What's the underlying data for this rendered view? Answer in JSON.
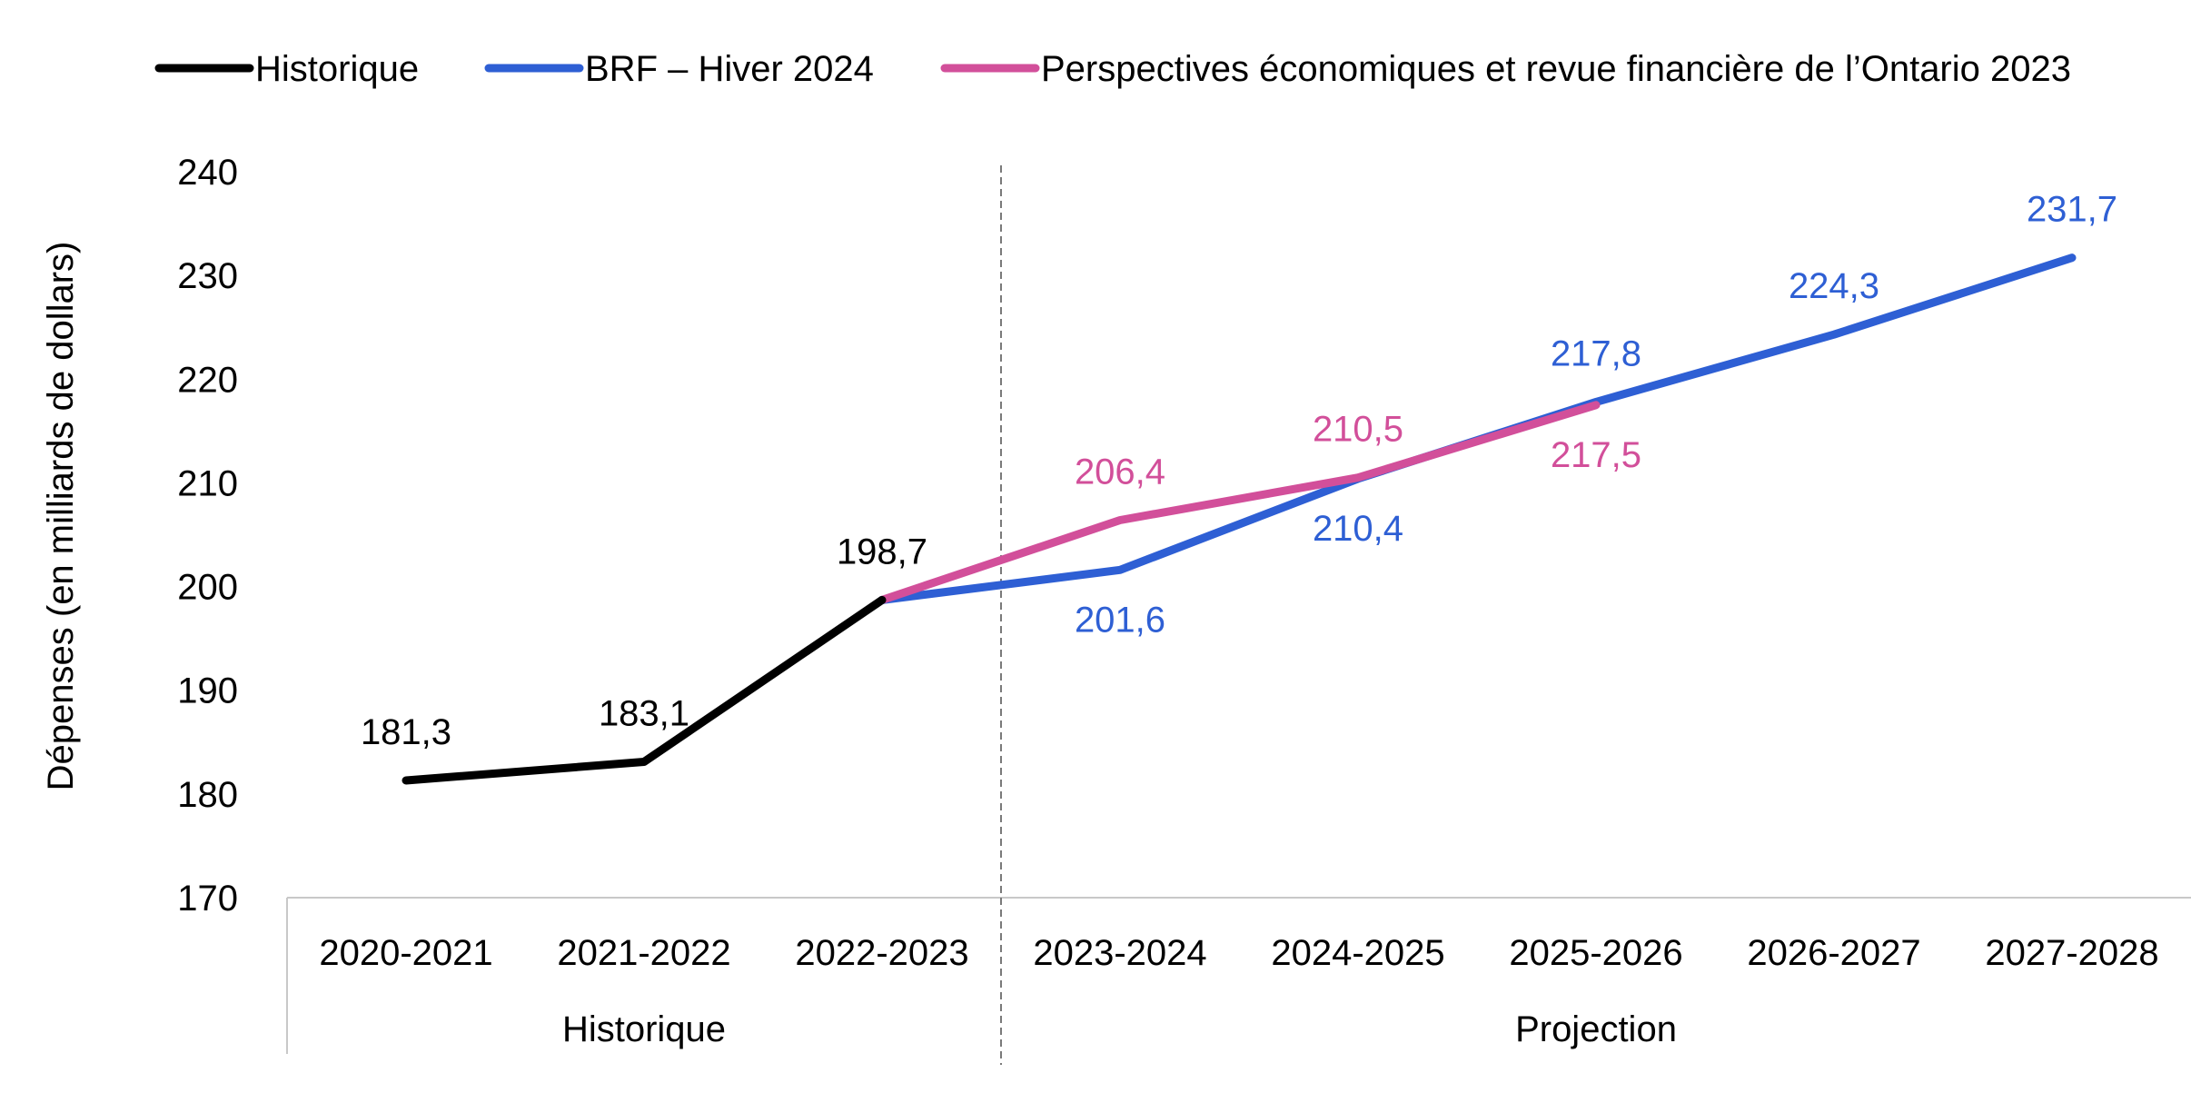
{
  "chart_data": {
    "type": "line",
    "ylabel": "Dépenses (en milliards de dollars)",
    "ylim": [
      170,
      240
    ],
    "yticks": [
      "170",
      "180",
      "190",
      "200",
      "210",
      "220",
      "230",
      "240"
    ],
    "categories": [
      "2020-2021",
      "2021-2022",
      "2022-2023",
      "2023-2024",
      "2024-2025",
      "2025-2026",
      "2026-2027",
      "2027-2028"
    ],
    "groups": [
      {
        "label": "Historique",
        "span": [
          0,
          2
        ]
      },
      {
        "label": "Projection",
        "span": [
          3,
          7
        ]
      }
    ],
    "legend_position": "top",
    "series": [
      {
        "name": "Historique",
        "color": "#000000",
        "values": [
          181.3,
          183.1,
          198.7,
          null,
          null,
          null,
          null,
          null
        ],
        "labels": [
          "181,3",
          "183,1",
          "198,7",
          null,
          null,
          null,
          null,
          null
        ],
        "label_pos": [
          "above",
          "above",
          "above",
          null,
          null,
          null,
          null,
          null
        ]
      },
      {
        "name": "BRF – Hiver 2024",
        "color": "#2E5FD4",
        "values": [
          null,
          null,
          198.7,
          201.6,
          210.4,
          217.8,
          224.3,
          231.7
        ],
        "labels": [
          null,
          null,
          null,
          "201,6",
          "210,4",
          "217,8",
          "224,3",
          "231,7"
        ],
        "label_pos": [
          null,
          null,
          null,
          "below",
          "below",
          "above",
          "above",
          "above"
        ]
      },
      {
        "name": "Perspectives économiques et revue financière de l’Ontario 2023",
        "color": "#D24F9A",
        "values": [
          null,
          null,
          198.7,
          206.4,
          210.5,
          217.5,
          null,
          null
        ],
        "labels": [
          null,
          null,
          null,
          "206,4",
          "210,5",
          "217,5",
          null,
          null
        ],
        "label_pos": [
          null,
          null,
          null,
          "above",
          "above",
          "below",
          null,
          null
        ]
      }
    ]
  }
}
